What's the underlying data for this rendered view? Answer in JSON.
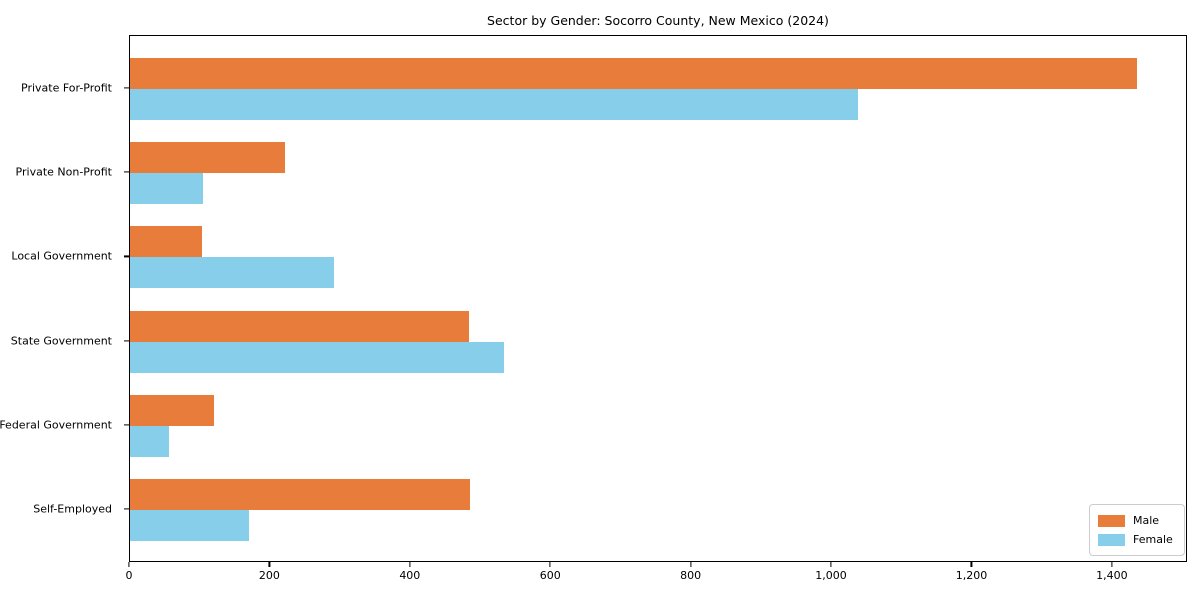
{
  "chart_data": {
    "type": "bar",
    "orientation": "horizontal",
    "title": "Sector by Gender: Socorro County, New Mexico (2024)",
    "categories": [
      "Private For-Profit",
      "Private Non-Profit",
      "Local Government",
      "State Government",
      "Federal Government",
      "Self-Employed"
    ],
    "series": [
      {
        "name": "Male",
        "color": "#E87D3B",
        "values": [
          1434,
          221,
          103,
          483,
          119,
          484
        ]
      },
      {
        "name": "Female",
        "color": "#87CEEB",
        "values": [
          1037,
          104,
          290,
          533,
          55,
          170
        ]
      }
    ],
    "xlabel": "",
    "ylabel": "",
    "xlim": [
      0,
      1507
    ],
    "xticks": [
      0,
      200,
      400,
      600,
      800,
      1000,
      1200,
      1400
    ],
    "xtick_labels": [
      "0",
      "200",
      "400",
      "600",
      "800",
      "1,000",
      "1,200",
      "1,400"
    ],
    "grid": false,
    "legend_position": "lower right",
    "background_color": "#ffffff",
    "axis_color": "#000000"
  }
}
